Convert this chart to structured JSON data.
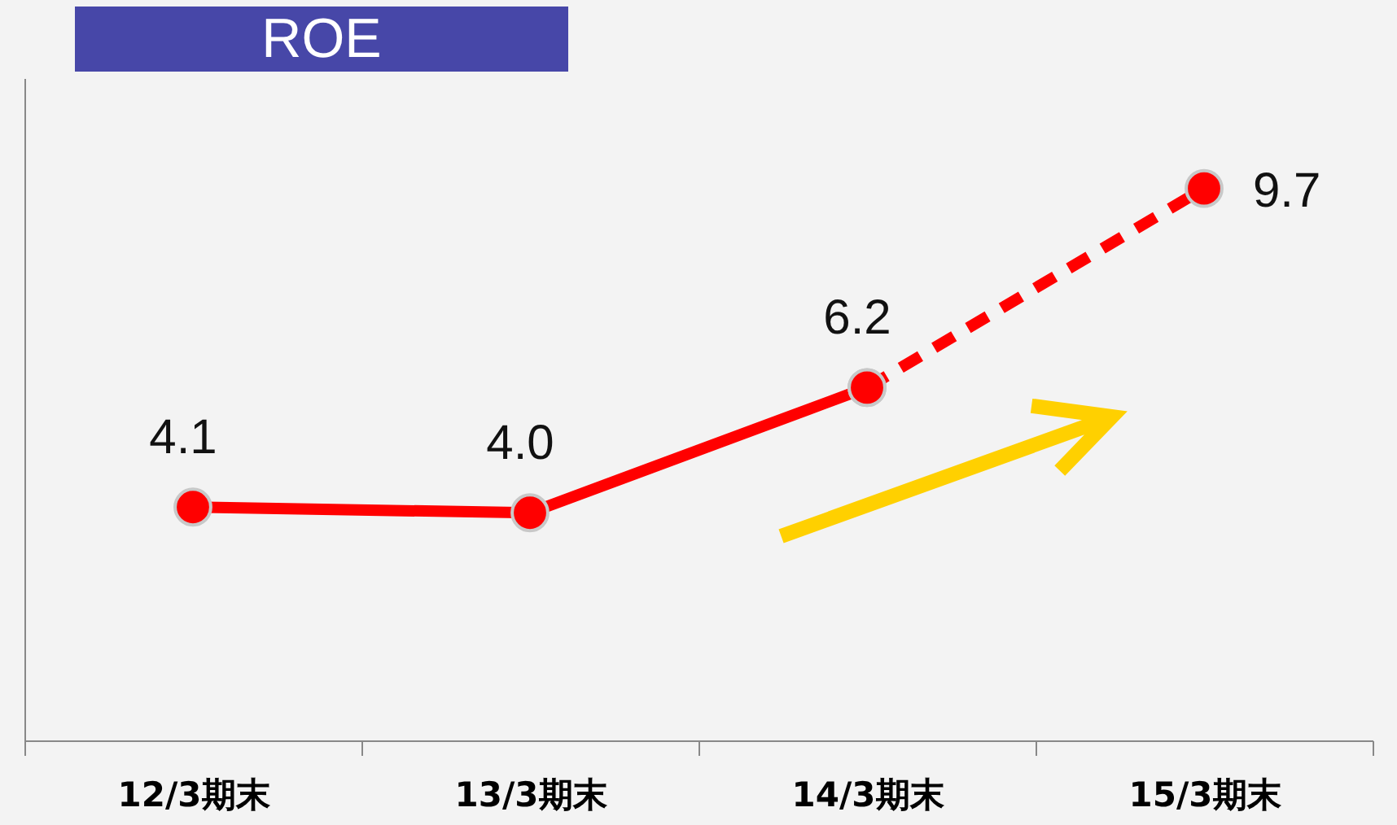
{
  "chart_data": {
    "type": "line",
    "title": "ROE",
    "categories": [
      "12/3期末",
      "13/3期末",
      "14/3期末",
      "15/3期末"
    ],
    "series": [
      {
        "color": "#ff0000",
        "line_style": "solid",
        "values": [
          4.1,
          4.0,
          6.2,
          null
        ],
        "value_labels": [
          "4.1",
          "4.0",
          "6.2",
          null
        ]
      },
      {
        "color": "#ff0000",
        "line_style": "dashed",
        "values": [
          null,
          null,
          6.2,
          9.7
        ],
        "value_labels": [
          null,
          null,
          null,
          "9.7"
        ]
      }
    ],
    "marker": "circle",
    "tick_labels": "x",
    "grid": false
  }
}
